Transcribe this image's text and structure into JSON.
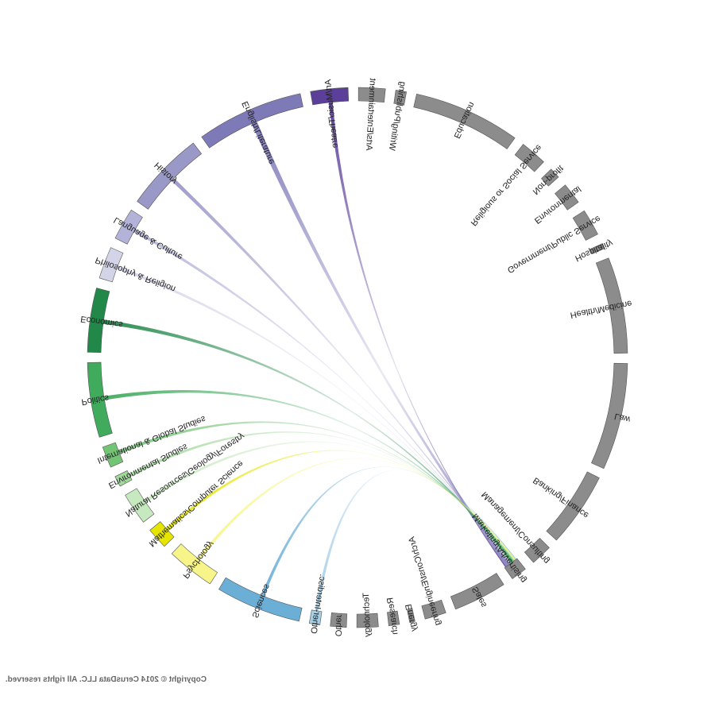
{
  "chart_data": {
    "type": "chord",
    "mirrored": true,
    "sources": [
      {
        "label": "Art/Music/Theatre",
        "color": "#5c3f99",
        "value": 0.35
      },
      {
        "label": "English/Literature",
        "color": "#7e7ab8",
        "value": 1.0
      },
      {
        "label": "History",
        "color": "#9a98c7",
        "value": 0.75
      },
      {
        "label": "Language & Culture",
        "color": "#b3b3d9",
        "value": 0.3
      },
      {
        "label": "Philosophy & Religion",
        "color": "#d4d4e8",
        "value": 0.3
      },
      {
        "label": "Economics",
        "color": "#22884a",
        "value": 0.6
      },
      {
        "label": "Politics",
        "color": "#41ab5d",
        "value": 0.7
      },
      {
        "label": "International & Global Studies",
        "color": "#74c476",
        "value": 0.2
      },
      {
        "label": "Environmental Studies",
        "color": "#a1d99b",
        "value": 0.1
      },
      {
        "label": "Natural Resources/Geology/Forestry",
        "color": "#c7e9c0",
        "value": 0.3
      },
      {
        "label": "Mathematics/Computer Science",
        "color": "#e5e500",
        "value": 0.2
      },
      {
        "label": "Psychology",
        "color": "#f7f58a",
        "value": 0.45
      },
      {
        "label": "Sciences",
        "color": "#6baed6",
        "value": 0.8
      },
      {
        "label": "Other-Interdisc.",
        "color": "#a6cfe6",
        "value": 0.1
      }
    ],
    "targets": [
      {
        "label": "Other",
        "value": 0.15
      },
      {
        "label": "Technology",
        "value": 0.2
      },
      {
        "label": "Research",
        "value": 0.1
      },
      {
        "label": "Energy",
        "value": 0.05
      },
      {
        "label": "Arch/Const/Engineering",
        "value": 0.2
      },
      {
        "label": "Sales",
        "value": 0.5
      },
      {
        "label": "Marketing/Advertising",
        "value": 0.15
      },
      {
        "label": "Management/Consulting",
        "value": 0.2
      },
      {
        "label": "Banking/Finance",
        "value": 0.7
      },
      {
        "label": "Law",
        "value": 1.0
      },
      {
        "label": "Health/Medicine",
        "value": 0.9
      },
      {
        "label": "Hospitality",
        "value": 0.05
      },
      {
        "label": "Government/Public Service",
        "value": 0.25
      },
      {
        "label": "Environmental",
        "value": 0.2
      },
      {
        "label": "Non-profit",
        "value": 0.1
      },
      {
        "label": "Religious or Social Service",
        "value": 0.25
      },
      {
        "label": "Education",
        "value": 1.0
      },
      {
        "label": "Writing/Publishing",
        "value": 0.1
      },
      {
        "label": "Arts/Entertainment",
        "value": 0.25
      }
    ],
    "target_color": "#8c8c8c",
    "focus_target": "Marketing/Advertising",
    "flows": [
      {
        "source": "Art/Music/Theatre",
        "target": "Marketing/Advertising",
        "weight": 0.25
      },
      {
        "source": "English/Literature",
        "target": "Marketing/Advertising",
        "weight": 0.8
      },
      {
        "source": "History",
        "target": "Marketing/Advertising",
        "weight": 0.3
      },
      {
        "source": "Language & Culture",
        "target": "Marketing/Advertising",
        "weight": 0.15
      },
      {
        "source": "Philosophy & Religion",
        "target": "Marketing/Advertising",
        "weight": 0.15
      },
      {
        "source": "Economics",
        "target": "Marketing/Advertising",
        "weight": 0.4
      },
      {
        "source": "Politics",
        "target": "Marketing/Advertising",
        "weight": 0.3
      },
      {
        "source": "International & Global Studies",
        "target": "Marketing/Advertising",
        "weight": 0.15
      },
      {
        "source": "Environmental Studies",
        "target": "Marketing/Advertising",
        "weight": 0.1
      },
      {
        "source": "Natural Resources/Geology/Forestry",
        "target": "Marketing/Advertising",
        "weight": 0.1
      },
      {
        "source": "Mathematics/Computer Science",
        "target": "Marketing/Advertising",
        "weight": 0.1
      },
      {
        "source": "Psychology",
        "target": "Marketing/Advertising",
        "weight": 0.15
      },
      {
        "source": "Sciences",
        "target": "Marketing/Advertising",
        "weight": 0.1
      },
      {
        "source": "Other-Interdisc.",
        "target": "Marketing/Advertising",
        "weight": 0.1
      }
    ]
  },
  "copyright": "Copyright © 2014 CerusData LLC.  All rights reserved."
}
